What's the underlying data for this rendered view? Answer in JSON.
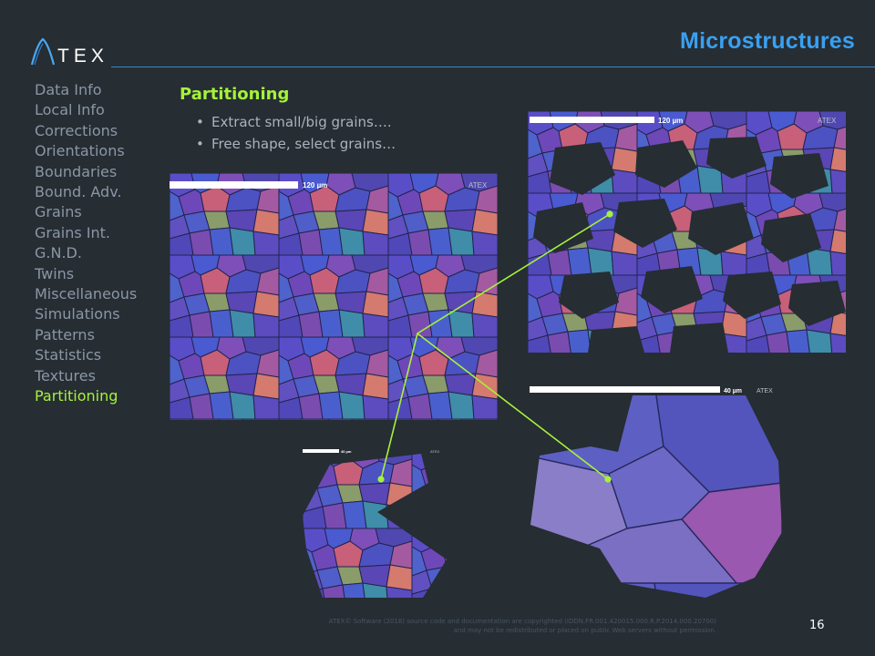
{
  "header": {
    "logo_text": "ATEX",
    "title": "Microstructures"
  },
  "sidebar": {
    "items": [
      {
        "label": "Data Info"
      },
      {
        "label": "Local Info"
      },
      {
        "label": "Corrections"
      },
      {
        "label": "Orientations"
      },
      {
        "label": "Boundaries"
      },
      {
        "label": "Bound. Adv."
      },
      {
        "label": "Grains"
      },
      {
        "label": "Grains Int."
      },
      {
        "label": "G.N.D."
      },
      {
        "label": "Twins"
      },
      {
        "label": "Miscellaneous"
      },
      {
        "label": "Simulations"
      },
      {
        "label": "Patterns"
      },
      {
        "label": "Statistics"
      },
      {
        "label": "Textures"
      },
      {
        "label": "Partitioning",
        "active": true
      }
    ]
  },
  "content": {
    "section_title": "Partitioning",
    "bullets": [
      "Extract small/big grains….",
      "Free shape, select grains…"
    ]
  },
  "maps": {
    "main": {
      "scale_label": "120 µm",
      "watermark": "ATEX"
    },
    "top_right": {
      "scale_label": "120 µm",
      "watermark": "ATEX"
    },
    "bottom_left": {
      "scale_label": "40 µm",
      "watermark": "ATEX"
    },
    "bottom_right": {
      "scale_label": "40 µm",
      "watermark": "ATEX"
    }
  },
  "footer": {
    "copyright_line1": "ATEX© Software (2018) source code and documentation are copyrighted (IDDN.FR.001.420015.000.R.P.2014.000.20700)",
    "copyright_line2": "and may not be redistributed or placed on public Web servers without permission.",
    "page_number": "16"
  },
  "colors": {
    "background": "#262d33",
    "title": "#3aa0f0",
    "accent": "#a6f23a",
    "sidebar_text": "#8a97a4",
    "header_rule": "#3d86c4"
  }
}
